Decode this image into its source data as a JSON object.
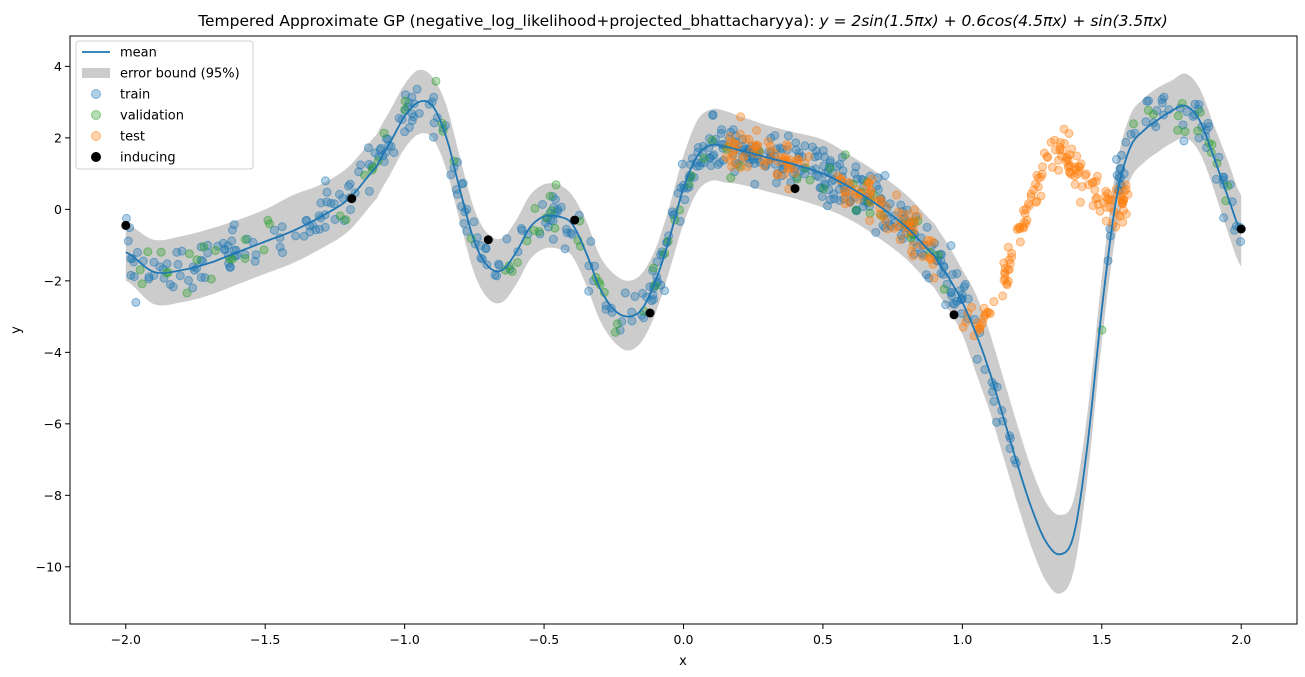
{
  "chart_data": {
    "type": "scatter",
    "title": "Tempered Approximate GP (negative_log_likelihood+projected_bhattacharyya): y = 2sin(1.5πx) + 0.6cos(4.5πx) + sin(3.5πx)",
    "title_parts": {
      "prefix": "Tempered Approximate GP (negative_log_likelihood+projected_bhattacharyya): ",
      "formula": "y = 2sin(1.5πx) + 0.6cos(4.5πx) + sin(3.5πx)"
    },
    "xlabel": "x",
    "ylabel": "y",
    "xlim": [
      -2.2,
      2.2
    ],
    "ylim": [
      -11.6,
      4.85
    ],
    "xticks": [
      -2.0,
      -1.5,
      -1.0,
      -0.5,
      0.0,
      0.5,
      1.0,
      1.5,
      2.0
    ],
    "xtick_labels": [
      "−2.0",
      "−1.5",
      "−1.0",
      "−0.5",
      "0.0",
      "0.5",
      "1.0",
      "1.5",
      "2.0"
    ],
    "yticks": [
      4,
      2,
      0,
      -2,
      -4,
      -6,
      -8,
      -10
    ],
    "ytick_labels": [
      "4",
      "2",
      "0",
      "−2",
      "−4",
      "−6",
      "−8",
      "−10"
    ],
    "grid": false,
    "legend_position": "top-left",
    "legend": [
      {
        "label": "mean",
        "kind": "line",
        "color": "#1f77b4"
      },
      {
        "label": "error bound (95%)",
        "kind": "band",
        "color": "#cccccc"
      },
      {
        "label": "train",
        "kind": "marker",
        "color": "#1f77b4"
      },
      {
        "label": "validation",
        "kind": "marker",
        "color": "#2ca02c"
      },
      {
        "label": "test",
        "kind": "marker",
        "color": "#ff7f0e"
      },
      {
        "label": "inducing",
        "kind": "marker",
        "color": "#000000"
      }
    ],
    "mean": {
      "x": [
        -2.0,
        -1.9,
        -1.8,
        -1.7,
        -1.6,
        -1.5,
        -1.4,
        -1.3,
        -1.2,
        -1.1,
        -1.05,
        -1.0,
        -0.95,
        -0.9,
        -0.85,
        -0.8,
        -0.75,
        -0.7,
        -0.65,
        -0.6,
        -0.55,
        -0.5,
        -0.45,
        -0.4,
        -0.35,
        -0.3,
        -0.25,
        -0.2,
        -0.15,
        -0.1,
        -0.05,
        0.0,
        0.05,
        0.1,
        0.15,
        0.2,
        0.3,
        0.4,
        0.5,
        0.6,
        0.7,
        0.8,
        0.9,
        0.95,
        1.0,
        1.05,
        1.1,
        1.15,
        1.2,
        1.25,
        1.3,
        1.35,
        1.4,
        1.45,
        1.5,
        1.55,
        1.6,
        1.65,
        1.7,
        1.75,
        1.8,
        1.85,
        1.9,
        1.95,
        2.0
      ],
      "y": [
        -1.2,
        -1.75,
        -1.7,
        -1.5,
        -1.2,
        -0.9,
        -0.6,
        -0.2,
        0.3,
        1.2,
        1.9,
        2.6,
        3.0,
        2.9,
        2.0,
        0.5,
        -0.9,
        -1.6,
        -1.7,
        -1.2,
        -0.5,
        -0.2,
        -0.2,
        -0.4,
        -1.2,
        -2.2,
        -2.8,
        -3.0,
        -2.8,
        -2.0,
        -0.8,
        0.6,
        1.5,
        1.8,
        1.75,
        1.65,
        1.45,
        1.25,
        1.0,
        0.6,
        0.1,
        -0.5,
        -1.3,
        -1.9,
        -2.6,
        -3.5,
        -4.6,
        -5.9,
        -7.2,
        -8.4,
        -9.3,
        -9.65,
        -9.1,
        -6.5,
        -2.8,
        0.2,
        1.7,
        2.2,
        2.5,
        2.75,
        2.9,
        2.5,
        1.5,
        0.4,
        -0.6
      ]
    },
    "band": {
      "x": [
        -2.0,
        -1.9,
        -1.8,
        -1.7,
        -1.6,
        -1.5,
        -1.4,
        -1.3,
        -1.2,
        -1.1,
        -1.05,
        -1.0,
        -0.95,
        -0.9,
        -0.85,
        -0.8,
        -0.75,
        -0.7,
        -0.65,
        -0.6,
        -0.55,
        -0.5,
        -0.45,
        -0.4,
        -0.35,
        -0.3,
        -0.25,
        -0.2,
        -0.15,
        -0.1,
        -0.05,
        0.0,
        0.05,
        0.1,
        0.15,
        0.2,
        0.3,
        0.4,
        0.5,
        0.6,
        0.7,
        0.8,
        0.9,
        0.95,
        1.0,
        1.05,
        1.1,
        1.15,
        1.2,
        1.25,
        1.3,
        1.35,
        1.4,
        1.45,
        1.5,
        1.55,
        1.6,
        1.65,
        1.7,
        1.75,
        1.8,
        1.85,
        1.9,
        1.95,
        2.0
      ],
      "upper": [
        -0.4,
        -0.85,
        -0.75,
        -0.55,
        -0.3,
        0.0,
        0.4,
        0.7,
        1.2,
        2.1,
        2.8,
        3.5,
        3.9,
        3.7,
        2.9,
        1.4,
        0.0,
        -0.7,
        -0.8,
        -0.3,
        0.4,
        0.7,
        0.7,
        0.4,
        -0.3,
        -1.3,
        -1.8,
        -2.0,
        -1.8,
        -1.1,
        0.1,
        1.5,
        2.5,
        2.8,
        2.75,
        2.6,
        2.35,
        2.15,
        1.95,
        1.5,
        1.0,
        0.4,
        -0.4,
        -1.0,
        -1.7,
        -2.4,
        -3.5,
        -4.8,
        -6.1,
        -7.3,
        -8.2,
        -8.55,
        -8.1,
        -5.6,
        -1.9,
        1.1,
        2.6,
        3.1,
        3.4,
        3.6,
        3.8,
        3.4,
        2.4,
        1.4,
        0.4
      ],
      "lower": [
        -2.0,
        -2.65,
        -2.6,
        -2.4,
        -2.1,
        -1.8,
        -1.5,
        -1.1,
        -0.6,
        0.3,
        1.0,
        1.7,
        2.1,
        2.0,
        1.1,
        -0.4,
        -1.8,
        -2.5,
        -2.6,
        -2.1,
        -1.4,
        -1.1,
        -1.1,
        -1.3,
        -2.1,
        -3.1,
        -3.7,
        -3.95,
        -3.7,
        -2.9,
        -1.7,
        -0.4,
        0.5,
        0.8,
        0.75,
        0.7,
        0.5,
        0.3,
        0.05,
        -0.3,
        -0.8,
        -1.4,
        -2.2,
        -2.8,
        -3.5,
        -4.6,
        -5.7,
        -7.0,
        -8.3,
        -9.5,
        -10.4,
        -10.75,
        -10.1,
        -7.4,
        -3.7,
        -0.7,
        0.8,
        1.3,
        1.6,
        1.85,
        2.0,
        1.6,
        0.6,
        -0.6,
        -1.6
      ]
    },
    "inducing": {
      "x": [
        -2.0,
        -1.19,
        -0.7,
        -0.39,
        -0.12,
        0.4,
        0.97,
        2.0
      ],
      "y": [
        -0.45,
        0.3,
        -0.85,
        -0.3,
        -2.9,
        0.58,
        -2.95,
        -0.55
      ]
    },
    "train_note_only_for_generation": null,
    "scatter_segments": {
      "train": [
        [
          -2.0,
          1.2
        ],
        [
          -0.1,
          1.0
        ],
        [
          1.5,
          2.0
        ]
      ],
      "validation": [
        [
          -2.0,
          1.0
        ],
        [
          1.5,
          2.0
        ]
      ],
      "test": [
        [
          0.15,
          0.45
        ],
        [
          0.55,
          0.9
        ],
        [
          1.0,
          1.6
        ]
      ]
    },
    "test_extra": {
      "x": [
        1.2,
        1.25,
        1.3,
        1.35,
        1.4,
        1.45,
        1.5,
        1.55
      ],
      "y": [
        0.3,
        0.9,
        1.4,
        1.7,
        1.9,
        1.3,
        0.5,
        0.0
      ]
    },
    "colors": {
      "mean": "#1f77b4",
      "band": "#cccccc",
      "train": "#1f77b4",
      "validation": "#2ca02c",
      "test": "#ff7f0e",
      "inducing": "#000000"
    }
  }
}
